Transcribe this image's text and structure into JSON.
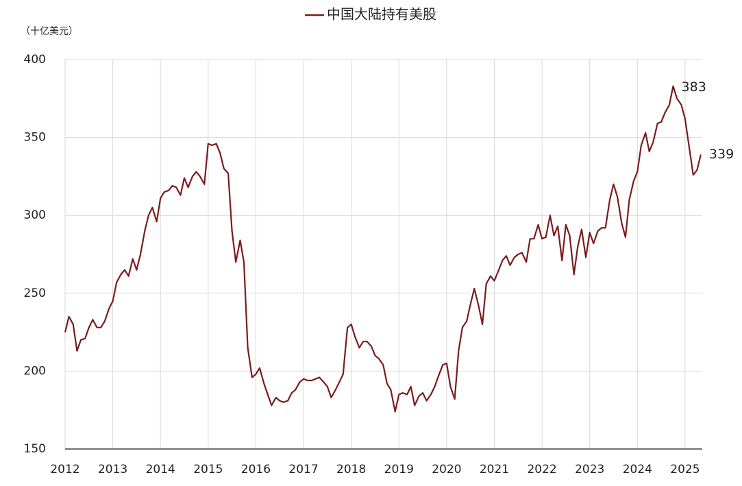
{
  "chart_data": {
    "type": "line",
    "title": "中国大陆持有美股",
    "y_label": "（十亿美元）",
    "x": [
      2012.0,
      2012.08,
      2012.17,
      2012.25,
      2012.33,
      2012.42,
      2012.5,
      2012.58,
      2012.67,
      2012.75,
      2012.83,
      2012.92,
      2013.0,
      2013.08,
      2013.17,
      2013.25,
      2013.33,
      2013.42,
      2013.5,
      2013.58,
      2013.67,
      2013.75,
      2013.83,
      2013.92,
      2014.0,
      2014.08,
      2014.17,
      2014.25,
      2014.33,
      2014.42,
      2014.5,
      2014.58,
      2014.67,
      2014.75,
      2014.83,
      2014.92,
      2015.0,
      2015.08,
      2015.17,
      2015.25,
      2015.33,
      2015.42,
      2015.5,
      2015.58,
      2015.67,
      2015.75,
      2015.83,
      2015.92,
      2016.0,
      2016.08,
      2016.17,
      2016.25,
      2016.33,
      2016.42,
      2016.5,
      2016.58,
      2016.67,
      2016.75,
      2016.83,
      2016.92,
      2017.0,
      2017.08,
      2017.17,
      2017.25,
      2017.33,
      2017.42,
      2017.5,
      2017.58,
      2017.67,
      2017.75,
      2017.83,
      2017.92,
      2018.0,
      2018.08,
      2018.17,
      2018.25,
      2018.33,
      2018.42,
      2018.5,
      2018.58,
      2018.67,
      2018.75,
      2018.83,
      2018.92,
      2019.0,
      2019.08,
      2019.17,
      2019.25,
      2019.33,
      2019.42,
      2019.5,
      2019.58,
      2019.67,
      2019.75,
      2019.83,
      2019.92,
      2020.0,
      2020.08,
      2020.17,
      2020.25,
      2020.33,
      2020.42,
      2020.5,
      2020.58,
      2020.67,
      2020.75,
      2020.83,
      2020.92,
      2021.0,
      2021.08,
      2021.17,
      2021.25,
      2021.33,
      2021.42,
      2021.5,
      2021.58,
      2021.67,
      2021.75,
      2021.83,
      2021.92,
      2022.0,
      2022.08,
      2022.17,
      2022.25,
      2022.33,
      2022.42,
      2022.5,
      2022.58,
      2022.67,
      2022.75,
      2022.83,
      2022.92,
      2023.0,
      2023.08,
      2023.17,
      2023.25,
      2023.33,
      2023.42,
      2023.5,
      2023.58,
      2023.67,
      2023.75,
      2023.83,
      2023.92,
      2024.0,
      2024.08,
      2024.17,
      2024.25,
      2024.33,
      2024.42,
      2024.5,
      2024.58,
      2024.67,
      2024.75,
      2024.83,
      2024.92,
      2025.0,
      2025.08,
      2025.17,
      2025.25,
      2025.33
    ],
    "series": [
      {
        "name": "中国大陆持有美股",
        "color": "#7a1c1c",
        "values": [
          225,
          235,
          230,
          213,
          220,
          221,
          228,
          233,
          228,
          228,
          232,
          240,
          245,
          257,
          262,
          265,
          261,
          272,
          265,
          275,
          290,
          300,
          305,
          296,
          311,
          315,
          316,
          319,
          318,
          313,
          324,
          318,
          325,
          328,
          325,
          320,
          346,
          345,
          346,
          340,
          330,
          327,
          290,
          270,
          284,
          270,
          215,
          196,
          198,
          202,
          192,
          185,
          178,
          183,
          181,
          180,
          181,
          186,
          188,
          193,
          195,
          194,
          194,
          195,
          196,
          193,
          190,
          183,
          188,
          193,
          198,
          228,
          230,
          222,
          215,
          219,
          219,
          216,
          210,
          208,
          204,
          192,
          188,
          174,
          185,
          186,
          185,
          190,
          178,
          184,
          186,
          181,
          185,
          190,
          197,
          204,
          205,
          190,
          182,
          213,
          228,
          232,
          243,
          253,
          242,
          230,
          256,
          261,
          258,
          264,
          271,
          274,
          268,
          273,
          275,
          276,
          270,
          285,
          285,
          294,
          285,
          286,
          300,
          287,
          293,
          271,
          294,
          287,
          262,
          280,
          291,
          273,
          289,
          282,
          290,
          292,
          292,
          310,
          320,
          312,
          295,
          286,
          310,
          322,
          328,
          345,
          353,
          341,
          347,
          359,
          360,
          366,
          371,
          383,
          375,
          371,
          362,
          345,
          326,
          329,
          339
        ]
      }
    ],
    "xlim": [
      2012,
      2025.36
    ],
    "xticks": [
      2012,
      2013,
      2014,
      2015,
      2016,
      2017,
      2018,
      2019,
      2020,
      2021,
      2022,
      2023,
      2024,
      2025
    ],
    "ylim": [
      150,
      400
    ],
    "yticks": [
      150,
      200,
      250,
      300,
      350,
      400
    ],
    "grid": true,
    "legend": "top"
  }
}
